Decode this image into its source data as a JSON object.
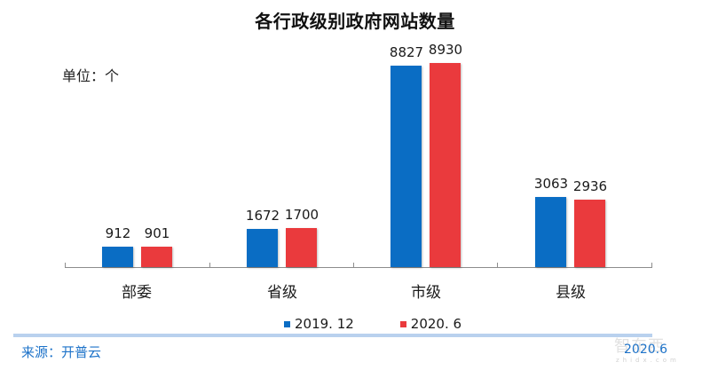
{
  "chart_data": {
    "type": "bar",
    "title": "各行政级别政府网站数量",
    "unit_label": "单位：个",
    "xlabel": "",
    "ylabel": "",
    "categories": [
      "部委",
      "省级",
      "市级",
      "县级"
    ],
    "series": [
      {
        "name": "2019.12",
        "color": "#0a6dc4",
        "values": [
          912,
          1672,
          8827,
          3063
        ]
      },
      {
        "name": "2020.6",
        "color": "#ea3a3d",
        "values": [
          901,
          1700,
          8930,
          2936
        ]
      }
    ],
    "ylim": [
      0,
      8930
    ],
    "grid": false,
    "legend_position": "bottom",
    "data_labels": true
  },
  "labels": {
    "title": "各行政级别政府网站数量",
    "unit": "单位：个",
    "categories": [
      "部委",
      "省级",
      "市级",
      "县级"
    ],
    "values_2019": [
      "912",
      "1672",
      "8827",
      "3063"
    ],
    "values_2020": [
      "901",
      "1700",
      "8930",
      "2936"
    ],
    "legend": [
      "2019. 12",
      "2020. 6"
    ]
  },
  "footer": {
    "source": "来源：开普云",
    "date": "2020.6",
    "watermark": "智东西",
    "watermark_sub": "zhidx.com"
  },
  "colors": {
    "series_2019": "#0a6dc4",
    "series_2020": "#ea3a3d",
    "footer_text": "#1e73c9",
    "footer_line": "#b9d1ee"
  }
}
